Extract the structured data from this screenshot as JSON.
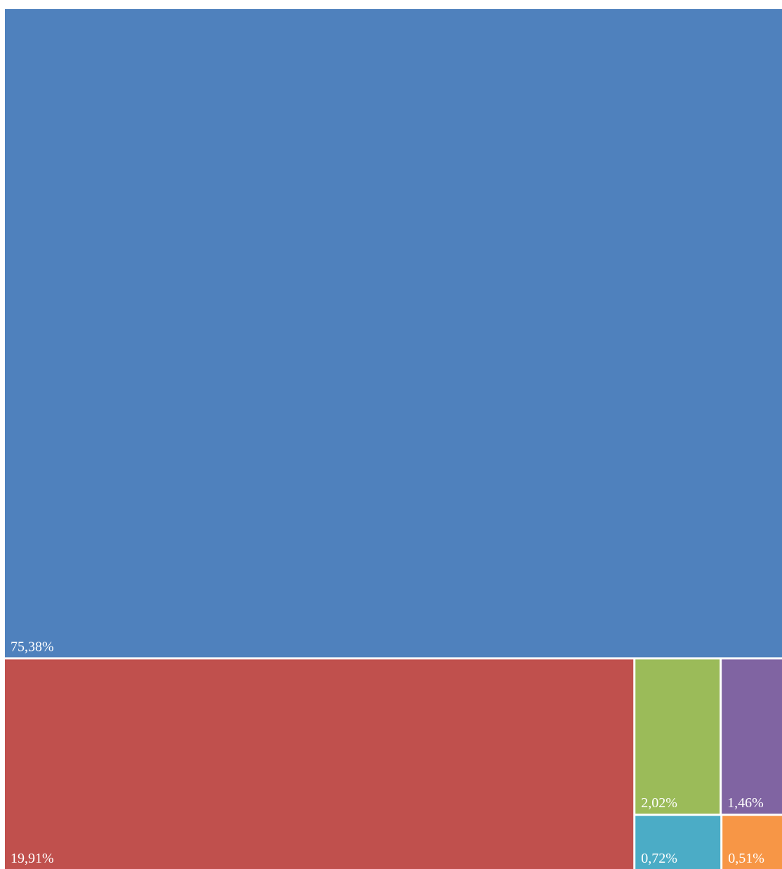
{
  "chart_data": {
    "type": "treemap",
    "title": "",
    "value_unit": "%",
    "nodes": [
      {
        "label": "75,38%",
        "value": 75.38,
        "color": "#4F81BD"
      },
      {
        "label": "19,91%",
        "value": 19.91,
        "color": "#C0504D"
      },
      {
        "label": "2,02%",
        "value": 2.02,
        "color": "#9BBB59"
      },
      {
        "label": "1,46%",
        "value": 1.46,
        "color": "#8064A2"
      },
      {
        "label": "0,72%",
        "value": 0.72,
        "color": "#4BACC6"
      },
      {
        "label": "0,51%",
        "value": 0.51,
        "color": "#F79646"
      }
    ]
  }
}
